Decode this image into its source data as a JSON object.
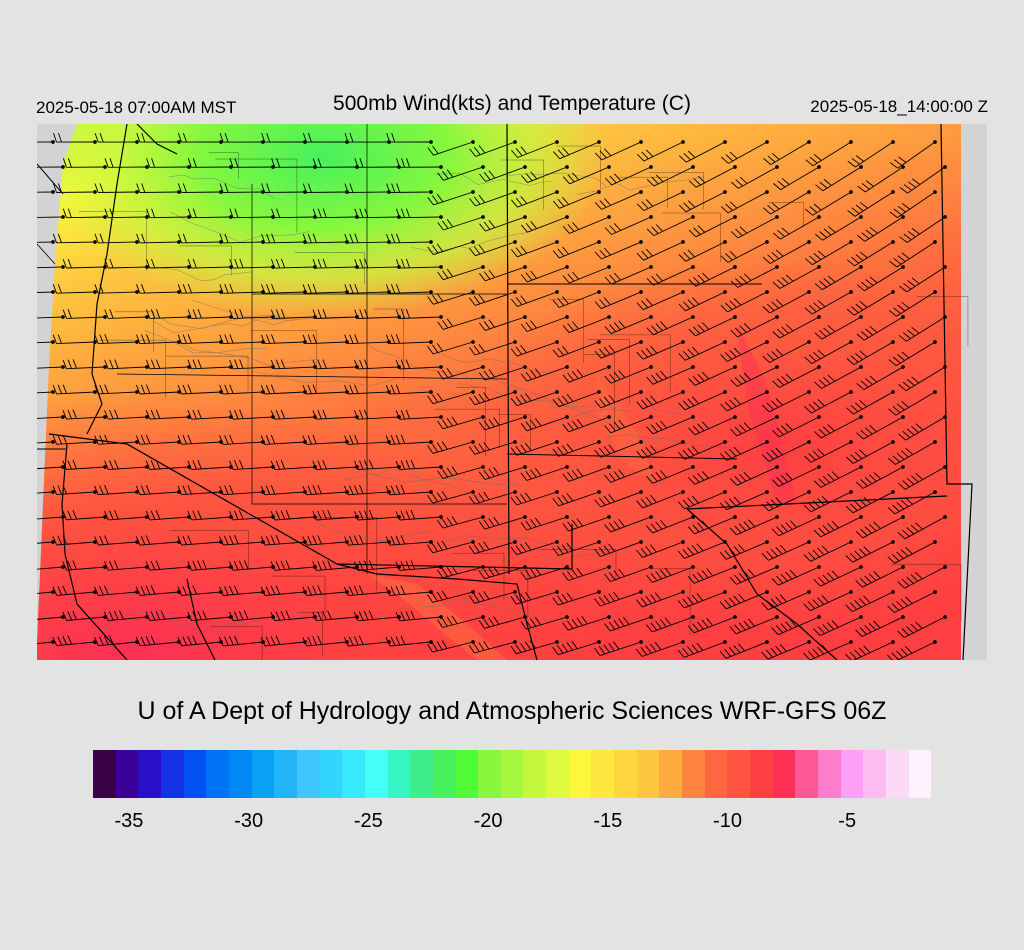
{
  "header": {
    "local_time": "2025-05-18 07:00AM MST",
    "title": "500mb Wind(kts) and Temperature (C)",
    "valid_time": "2025-05-18_14:00:00 Z"
  },
  "credit": "U of A Dept of Hydrology and Atmospheric Sciences WRF-GFS 06Z",
  "colorbar": {
    "colors": [
      "#3a0048",
      "#3b0098",
      "#2a0fc8",
      "#1431e6",
      "#0050f2",
      "#0072f5",
      "#0089f5",
      "#0aa2f5",
      "#22b4f7",
      "#3ec6fa",
      "#33d5fc",
      "#38e9fc",
      "#43fff6",
      "#38f5c6",
      "#3dee8b",
      "#46f15c",
      "#52fb38",
      "#87f73e",
      "#a6f73f",
      "#c3f83f",
      "#dff93f",
      "#fcf63d",
      "#fde83f",
      "#fed63f",
      "#fdc63f",
      "#feaa3f",
      "#fd833f",
      "#fe673f",
      "#fe5541",
      "#fe3f41",
      "#fc2f55",
      "#fc5895",
      "#fd7ccb",
      "#fe9ef4",
      "#fdbcf1",
      "#fdd9f8",
      "#fef0fd"
    ],
    "tick_labels": [
      "-35",
      "-30",
      "-25",
      "-20",
      "-15",
      "-10",
      "-5"
    ],
    "tick_values": [
      -35,
      -30,
      -25,
      -20,
      -15,
      -10,
      -5
    ],
    "min": -36.5,
    "max": -1.5
  },
  "map": {
    "field": "500mb temperature (C) with wind barbs (kts)",
    "nodata_color": "#d3d3d3"
  }
}
